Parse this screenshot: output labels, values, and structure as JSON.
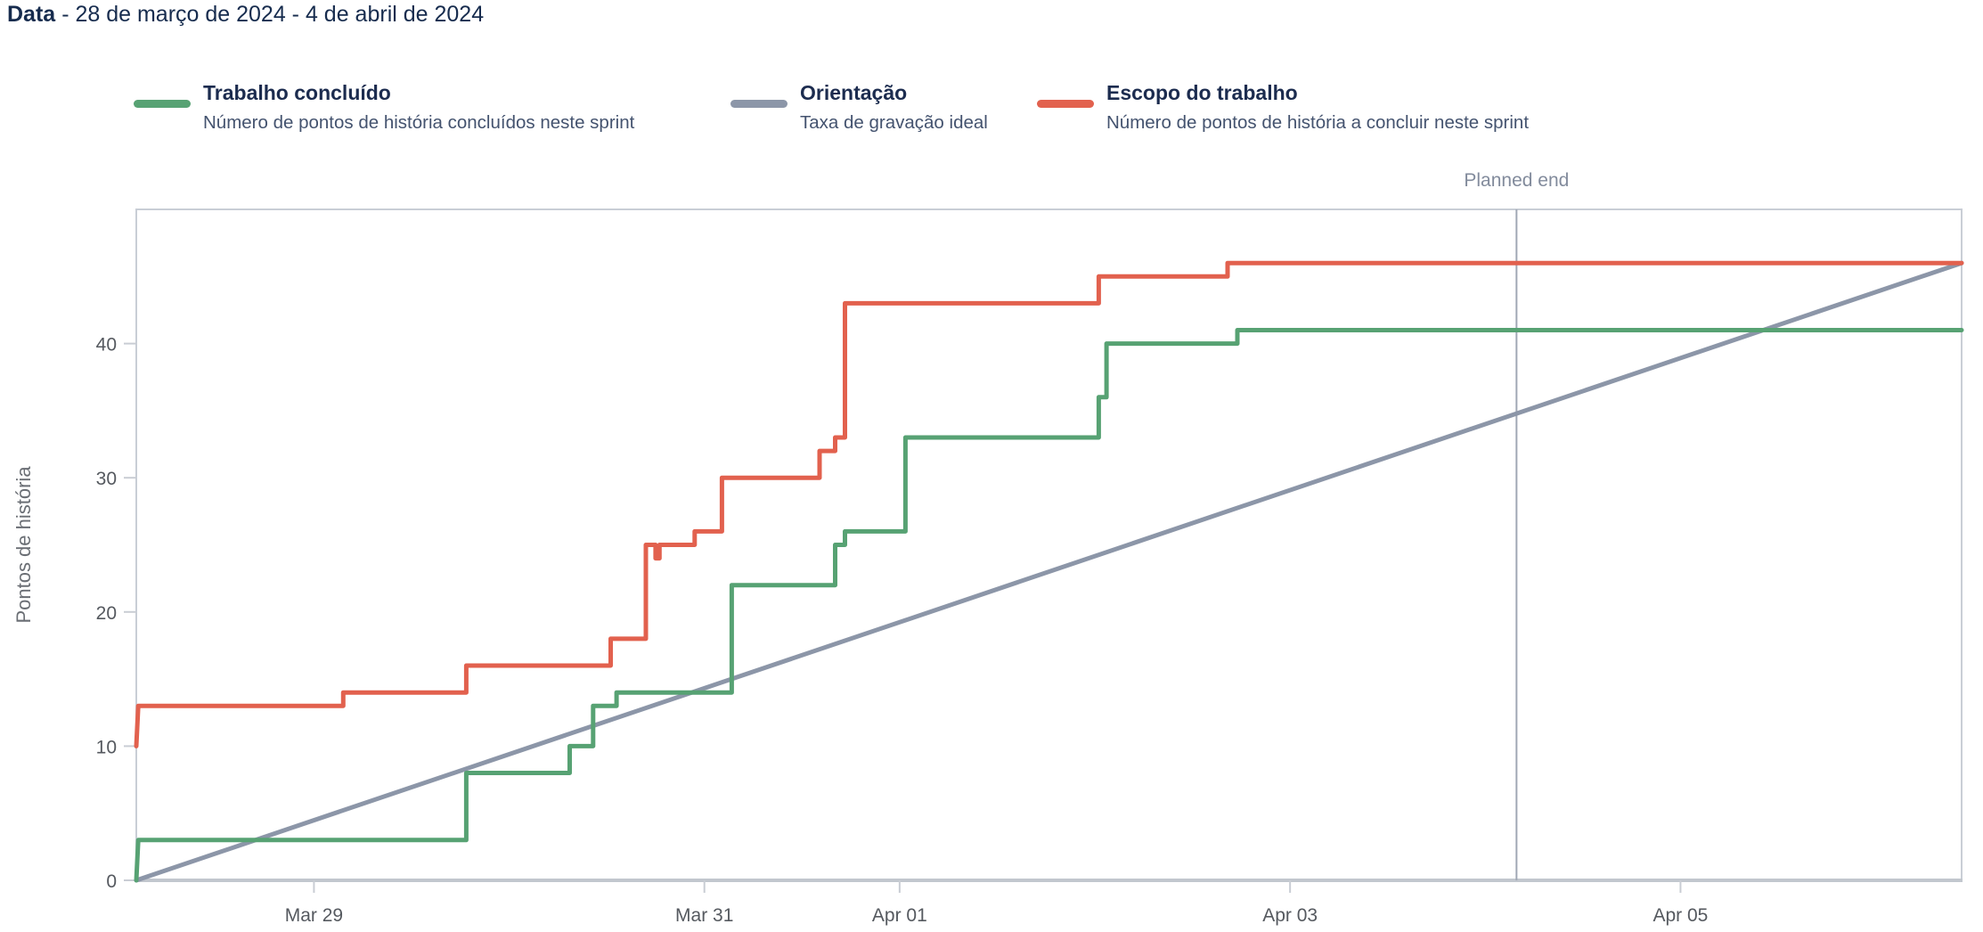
{
  "header": {
    "title_label": "Data",
    "title_range": "- 28 de março de 2024 - 4 de abril de 2024"
  },
  "legend": {
    "items": [
      {
        "label": "Trabalho concluído",
        "description": "Número de pontos de história concluídos neste sprint",
        "color": "#57A273"
      },
      {
        "label": "Orientação",
        "description": "Taxa de gravação ideal",
        "color": "#8C96A8"
      },
      {
        "label": "Escopo do trabalho",
        "description": "Número de pontos de história a concluir neste sprint",
        "color": "#E2614E"
      }
    ]
  },
  "chart_style": {
    "plot_border": "#C9CED6",
    "axis_line": "#C2C7CE",
    "tick_color": "#C9CDD4",
    "planned_line": "#A0A8B5",
    "series_width": 5
  },
  "chart_data": {
    "type": "line",
    "subtype": "step-burnup",
    "title": "Sprint burnup: story points over time",
    "ylabel": "Pontos de história",
    "x_unit": "days since 2024-03-28 00:00",
    "x_domain": [
      0.09,
      9.44
    ],
    "y_domain": [
      0,
      50
    ],
    "grid": false,
    "y_ticks": [
      0,
      10,
      20,
      30,
      40
    ],
    "x_ticks": [
      {
        "x": 1,
        "label": "Mar 29"
      },
      {
        "x": 3,
        "label": "Mar 31"
      },
      {
        "x": 4,
        "label": "Apr 01"
      },
      {
        "x": 6,
        "label": "Apr 03"
      },
      {
        "x": 8,
        "label": "Apr 05"
      }
    ],
    "planned_end": {
      "x": 7.16,
      "label": "Planned end"
    },
    "series": [
      {
        "id": "guideline",
        "name": "Orientação",
        "color": "#8C96A8",
        "points": [
          [
            0.09,
            0
          ],
          [
            9.44,
            46
          ]
        ]
      },
      {
        "id": "completed",
        "name": "Trabalho concluído",
        "color": "#57A273",
        "points": [
          [
            0.09,
            0
          ],
          [
            0.1,
            3
          ],
          [
            1.78,
            3
          ],
          [
            1.78,
            8
          ],
          [
            2.31,
            8
          ],
          [
            2.31,
            10
          ],
          [
            2.43,
            10
          ],
          [
            2.43,
            13
          ],
          [
            2.55,
            13
          ],
          [
            2.55,
            14
          ],
          [
            3.14,
            14
          ],
          [
            3.14,
            22
          ],
          [
            3.67,
            22
          ],
          [
            3.67,
            25
          ],
          [
            3.72,
            25
          ],
          [
            3.72,
            26
          ],
          [
            4.03,
            26
          ],
          [
            4.03,
            33
          ],
          [
            5.02,
            33
          ],
          [
            5.02,
            36
          ],
          [
            5.06,
            36
          ],
          [
            5.06,
            40
          ],
          [
            5.73,
            40
          ],
          [
            5.73,
            41
          ],
          [
            9.44,
            41
          ]
        ]
      },
      {
        "id": "scope",
        "name": "Escopo do trabalho",
        "color": "#E2614E",
        "points": [
          [
            0.09,
            10
          ],
          [
            0.1,
            13
          ],
          [
            1.15,
            13
          ],
          [
            1.15,
            14
          ],
          [
            1.78,
            14
          ],
          [
            1.78,
            16
          ],
          [
            2.52,
            16
          ],
          [
            2.52,
            18
          ],
          [
            2.7,
            18
          ],
          [
            2.7,
            25
          ],
          [
            2.75,
            25
          ],
          [
            2.75,
            24
          ],
          [
            2.77,
            24
          ],
          [
            2.77,
            25
          ],
          [
            2.95,
            25
          ],
          [
            2.95,
            26
          ],
          [
            3.09,
            26
          ],
          [
            3.09,
            30
          ],
          [
            3.59,
            30
          ],
          [
            3.59,
            32
          ],
          [
            3.67,
            32
          ],
          [
            3.67,
            33
          ],
          [
            3.72,
            33
          ],
          [
            3.72,
            43
          ],
          [
            5.02,
            43
          ],
          [
            5.02,
            45
          ],
          [
            5.68,
            45
          ],
          [
            5.68,
            46
          ],
          [
            9.44,
            46
          ]
        ]
      }
    ]
  }
}
